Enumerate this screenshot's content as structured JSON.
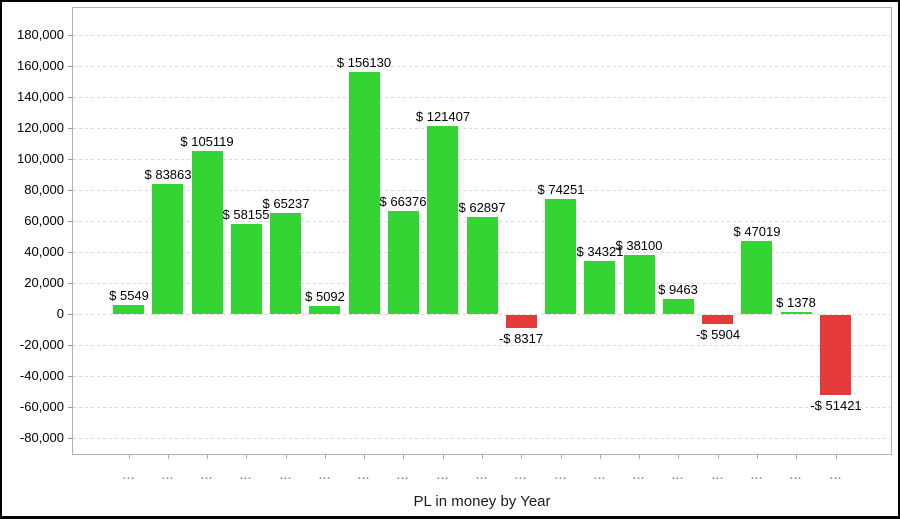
{
  "chart_data": {
    "type": "bar",
    "title": "PL in money by Year",
    "categories": [
      "...",
      "...",
      "...",
      "...",
      "...",
      "...",
      "...",
      "...",
      "...",
      "...",
      "...",
      "...",
      "...",
      "...",
      "...",
      "...",
      "...",
      "...",
      "..."
    ],
    "values": [
      5549,
      83863,
      105119,
      58155,
      65237,
      5092,
      156130,
      66376,
      121407,
      62897,
      -8317,
      74251,
      34321,
      38100,
      9463,
      -5904,
      47019,
      1378,
      -51421
    ],
    "bar_labels": [
      "$ 5549",
      "$ 83863",
      "$ 105119",
      "$ 58155",
      "$ 65237",
      "$ 5092",
      "$ 156130",
      "$ 66376",
      "$ 121407",
      "$ 62897",
      "-$ 8317",
      "$ 74251",
      "$ 34321",
      "$ 38100",
      "$ 9463",
      "-$ 5904",
      "$ 47019",
      "$ 1378",
      "-$ 51421"
    ],
    "xlabel": "PL in money by Year",
    "ylabel": "",
    "y_tick_values": [
      180000,
      160000,
      140000,
      120000,
      100000,
      80000,
      60000,
      40000,
      20000,
      0,
      -20000,
      -40000,
      -60000,
      -80000
    ],
    "y_tick_labels": [
      "180,000",
      "160,000",
      "140,000",
      "120,000",
      "100,000",
      "80,000",
      "60,000",
      "40,000",
      "20,000",
      "0",
      "-20,000",
      "-40,000",
      "-60,000",
      "-80,000"
    ],
    "ylim": [
      -89000,
      198000
    ],
    "grid": "horizontal-dashed",
    "legend": "none",
    "colors": {
      "positive_bar": "#35d435",
      "negative_bar": "#e43a3a",
      "gridline": "#d9d9d9",
      "plot_border": "#b3b3b3",
      "bar_label_text": "#000000",
      "axis_label_text": "#000000",
      "x_tick_text": "#8d8d8d",
      "outer_border": "#000000"
    }
  }
}
